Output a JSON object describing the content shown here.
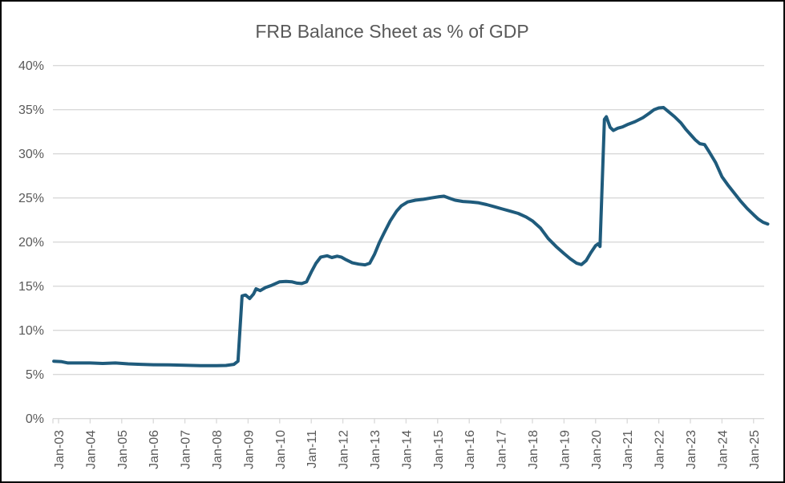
{
  "window": {
    "background_color": "#ffffff",
    "border_color": "#000000"
  },
  "chart_data": {
    "type": "line",
    "title": "FRB Balance Sheet as % of GDP",
    "xlabel": "",
    "ylabel": "",
    "ylim": [
      0,
      40
    ],
    "y_tick_step": 5,
    "y_tick_labels": [
      "0%",
      "5%",
      "10%",
      "15%",
      "20%",
      "25%",
      "30%",
      "35%",
      "40%"
    ],
    "x_tick_labels": [
      "Jan-03",
      "Jan-04",
      "Jan-05",
      "Jan-06",
      "Jan-07",
      "Jan-08",
      "Jan-09",
      "Jan-10",
      "Jan-11",
      "Jan-12",
      "Jan-13",
      "Jan-14",
      "Jan-15",
      "Jan-16",
      "Jan-17",
      "Jan-18",
      "Jan-19",
      "Jan-20",
      "Jan-21",
      "Jan-22",
      "Jan-23",
      "Jan-24",
      "Jan-25"
    ],
    "x_tick_years": [
      2003,
      2004,
      2005,
      2006,
      2007,
      2008,
      2009,
      2010,
      2011,
      2012,
      2013,
      2014,
      2015,
      2016,
      2017,
      2018,
      2019,
      2020,
      2021,
      2022,
      2023,
      2024,
      2025
    ],
    "grid": "horizontal",
    "legend": "none",
    "colors": {
      "line": "#1F5B7C",
      "gridline": "#D9D9D9",
      "axis": "#D9D9D9",
      "tick": "#D9D9D9",
      "label": "#595959",
      "title": "#595959"
    },
    "series": [
      {
        "name": "FRB Balance Sheet as % of GDP",
        "x_unit": "decimal_year",
        "y_unit": "percent_of_gdp",
        "points": [
          [
            2002.85,
            6.5
          ],
          [
            2003.1,
            6.45
          ],
          [
            2003.3,
            6.3
          ],
          [
            2003.6,
            6.3
          ],
          [
            2004.0,
            6.3
          ],
          [
            2004.4,
            6.25
          ],
          [
            2004.8,
            6.3
          ],
          [
            2005.2,
            6.2
          ],
          [
            2005.6,
            6.15
          ],
          [
            2006.0,
            6.1
          ],
          [
            2006.5,
            6.08
          ],
          [
            2007.0,
            6.05
          ],
          [
            2007.5,
            6.0
          ],
          [
            2008.0,
            6.0
          ],
          [
            2008.3,
            6.02
          ],
          [
            2008.55,
            6.15
          ],
          [
            2008.68,
            6.5
          ],
          [
            2008.81,
            13.9
          ],
          [
            2008.92,
            14.0
          ],
          [
            2009.05,
            13.6
          ],
          [
            2009.17,
            14.1
          ],
          [
            2009.25,
            14.7
          ],
          [
            2009.38,
            14.5
          ],
          [
            2009.55,
            14.85
          ],
          [
            2009.75,
            15.1
          ],
          [
            2010.0,
            15.5
          ],
          [
            2010.2,
            15.55
          ],
          [
            2010.38,
            15.5
          ],
          [
            2010.55,
            15.35
          ],
          [
            2010.7,
            15.3
          ],
          [
            2010.85,
            15.5
          ],
          [
            2011.0,
            16.6
          ],
          [
            2011.15,
            17.6
          ],
          [
            2011.3,
            18.3
          ],
          [
            2011.5,
            18.45
          ],
          [
            2011.65,
            18.25
          ],
          [
            2011.82,
            18.4
          ],
          [
            2011.95,
            18.3
          ],
          [
            2012.1,
            18.0
          ],
          [
            2012.3,
            17.65
          ],
          [
            2012.5,
            17.5
          ],
          [
            2012.7,
            17.42
          ],
          [
            2012.85,
            17.6
          ],
          [
            2013.0,
            18.6
          ],
          [
            2013.15,
            19.9
          ],
          [
            2013.3,
            21.0
          ],
          [
            2013.5,
            22.4
          ],
          [
            2013.7,
            23.5
          ],
          [
            2013.85,
            24.1
          ],
          [
            2014.05,
            24.55
          ],
          [
            2014.3,
            24.75
          ],
          [
            2014.55,
            24.85
          ],
          [
            2014.8,
            25.0
          ],
          [
            2015.05,
            25.15
          ],
          [
            2015.2,
            25.2
          ],
          [
            2015.35,
            25.0
          ],
          [
            2015.55,
            24.75
          ],
          [
            2015.8,
            24.6
          ],
          [
            2016.05,
            24.55
          ],
          [
            2016.3,
            24.45
          ],
          [
            2016.55,
            24.25
          ],
          [
            2016.8,
            24.0
          ],
          [
            2017.05,
            23.75
          ],
          [
            2017.3,
            23.5
          ],
          [
            2017.55,
            23.25
          ],
          [
            2017.8,
            22.85
          ],
          [
            2018.0,
            22.4
          ],
          [
            2018.25,
            21.6
          ],
          [
            2018.5,
            20.4
          ],
          [
            2018.75,
            19.5
          ],
          [
            2019.0,
            18.7
          ],
          [
            2019.2,
            18.1
          ],
          [
            2019.4,
            17.6
          ],
          [
            2019.55,
            17.45
          ],
          [
            2019.7,
            17.9
          ],
          [
            2019.85,
            18.8
          ],
          [
            2020.0,
            19.6
          ],
          [
            2020.08,
            19.8
          ],
          [
            2020.14,
            19.5
          ],
          [
            2020.28,
            33.9
          ],
          [
            2020.34,
            34.2
          ],
          [
            2020.46,
            33.0
          ],
          [
            2020.56,
            32.65
          ],
          [
            2020.7,
            32.9
          ],
          [
            2020.85,
            33.05
          ],
          [
            2021.0,
            33.3
          ],
          [
            2021.25,
            33.65
          ],
          [
            2021.5,
            34.1
          ],
          [
            2021.7,
            34.6
          ],
          [
            2021.85,
            35.0
          ],
          [
            2022.0,
            35.2
          ],
          [
            2022.15,
            35.25
          ],
          [
            2022.3,
            34.8
          ],
          [
            2022.5,
            34.2
          ],
          [
            2022.7,
            33.5
          ],
          [
            2022.85,
            32.8
          ],
          [
            2023.0,
            32.2
          ],
          [
            2023.15,
            31.6
          ],
          [
            2023.3,
            31.15
          ],
          [
            2023.45,
            31.05
          ],
          [
            2023.6,
            30.2
          ],
          [
            2023.8,
            29.0
          ],
          [
            2024.0,
            27.4
          ],
          [
            2024.2,
            26.4
          ],
          [
            2024.4,
            25.5
          ],
          [
            2024.6,
            24.6
          ],
          [
            2024.8,
            23.8
          ],
          [
            2025.0,
            23.1
          ],
          [
            2025.15,
            22.6
          ],
          [
            2025.3,
            22.25
          ],
          [
            2025.45,
            22.05
          ]
        ]
      }
    ]
  }
}
